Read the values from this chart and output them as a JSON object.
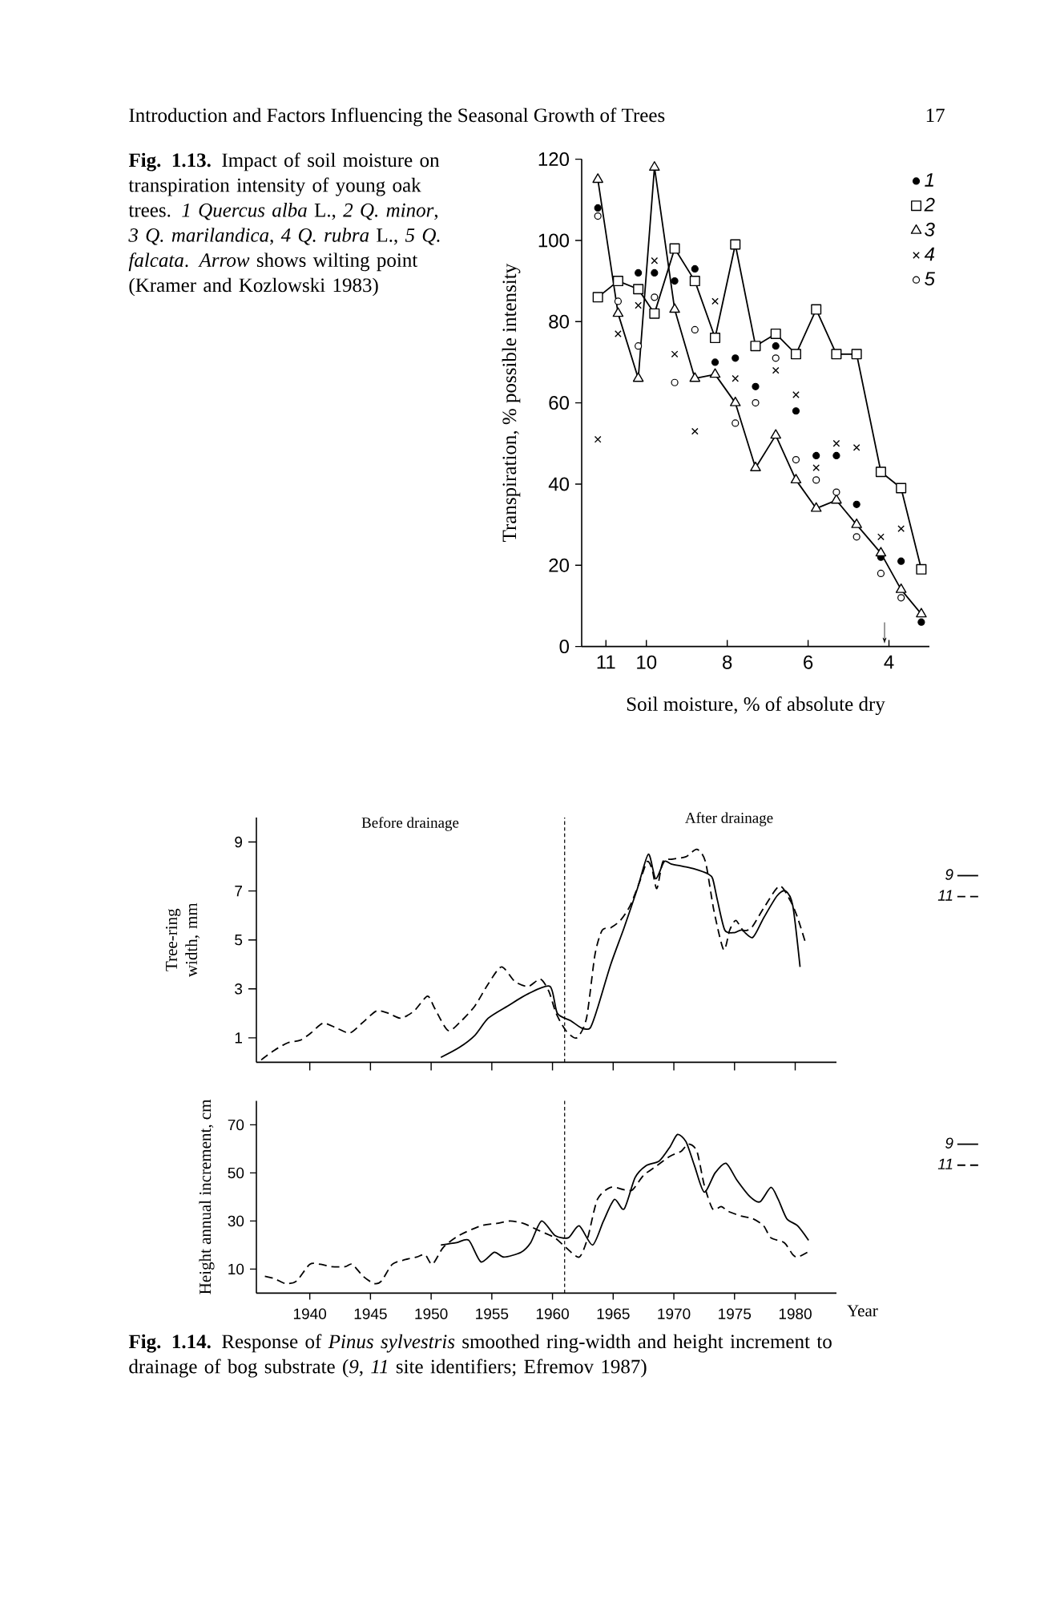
{
  "chart_data": [
    {
      "type": "scatter",
      "xlabel": "Soil moisture, % of absolute dry",
      "ylabel": "Transpiration, % possible intensity",
      "xlim": [
        11.6,
        3.0
      ],
      "xticks": [
        11,
        10,
        8,
        6,
        4
      ],
      "ylim": [
        0,
        120
      ],
      "yticks": [
        0,
        20,
        40,
        60,
        80,
        100,
        120
      ],
      "legend": "top right",
      "annotations": [
        "Introduction and Factors Influencing the Seasonal Growth of Trees",
        "17",
        "**Fig. 1.13.** Impact of soil moisture on transpiration intensity of young oak trees. *1 Quercus alba* L., *2 Q. minor*, *3 Q. marilandica*, *4 Q. rubra* L., *5 Q. falcata*. *Arrow* shows wilting point (Kramer and Kozlowski 1983)",
        "↓"
      ],
      "series": [
        {
          "name": "1",
          "color": "#000000",
          "marker": "circle",
          "x": [
            11.2,
            10.2,
            9.8,
            9.3,
            8.8,
            8.3,
            7.8,
            7.3,
            6.8,
            6.3,
            5.8,
            5.3,
            4.8,
            4.2,
            3.7,
            3.2
          ],
          "values": [
            108,
            92,
            92,
            90,
            93,
            70,
            71,
            64,
            74,
            58,
            47,
            47,
            35,
            22,
            21,
            6
          ]
        },
        {
          "name": "2",
          "type": "line",
          "color": "#000000",
          "marker": "square",
          "line_style": "solid",
          "x": [
            11.2,
            10.7,
            10.2,
            9.8,
            9.3,
            8.8,
            8.3,
            7.8,
            7.3,
            6.8,
            6.3,
            5.8,
            5.3,
            4.8,
            4.2,
            3.7,
            3.2
          ],
          "values": [
            86,
            90,
            88,
            82,
            98,
            90,
            76,
            99,
            74,
            77,
            72,
            83,
            72,
            72,
            43,
            39,
            19
          ]
        },
        {
          "name": "3",
          "type": "line",
          "color": "#000000",
          "marker": "triangle",
          "line_style": "solid",
          "x": [
            11.2,
            10.7,
            10.2,
            9.8,
            9.3,
            8.8,
            8.3,
            7.8,
            7.3,
            6.8,
            6.3,
            5.8,
            5.3,
            4.8,
            4.2,
            3.7,
            3.2
          ],
          "values": [
            115,
            82,
            66,
            118,
            83,
            66,
            67,
            60,
            44,
            52,
            41,
            34,
            36,
            30,
            23,
            14,
            8
          ]
        },
        {
          "name": "4",
          "color": "#000000",
          "marker": "cross",
          "x": [
            11.2,
            10.7,
            10.2,
            9.8,
            9.3,
            8.8,
            8.3,
            7.8,
            6.8,
            6.3,
            5.8,
            5.3,
            4.8,
            4.2,
            3.7
          ],
          "values": [
            51,
            77,
            84,
            95,
            72,
            53,
            85,
            66,
            68,
            62,
            44,
            50,
            49,
            27,
            29
          ]
        },
        {
          "name": "5",
          "color": "#ffffff",
          "marker": "circle",
          "x": [
            11.2,
            10.7,
            10.2,
            9.8,
            9.3,
            8.8,
            7.8,
            7.3,
            6.8,
            6.3,
            5.8,
            5.3,
            4.8,
            4.2,
            3.7
          ],
          "values": [
            106,
            85,
            74,
            86,
            65,
            78,
            55,
            60,
            71,
            46,
            41,
            38,
            27,
            18,
            12
          ]
        }
      ]
    },
    {
      "type": "line",
      "ylabel": "Tree-ring width, mm",
      "xlim": [
        1935.6,
        1983.4
      ],
      "xticks": [
        1940,
        1945,
        1950,
        1955,
        1960,
        1965,
        1970,
        1975,
        1980
      ],
      "ylim": [
        0,
        10
      ],
      "yticks": [
        1,
        3,
        5,
        7,
        9
      ],
      "tick_labels": "y",
      "legend": "right",
      "ref_lines": [
        {
          "axis": "x",
          "value": 1961,
          "line_style": "dashed"
        }
      ],
      "annotations": [
        "Before drainage",
        "After drainage"
      ],
      "series": [
        {
          "name": "9",
          "color": "#000000",
          "line_style": "solid",
          "x": [
            1950.8,
            1952.3,
            1953.6,
            1954.7,
            1956.3,
            1958.0,
            1959.8,
            1960.4,
            1961.5,
            1962.4,
            1963.1,
            1963.7,
            1964.8,
            1965.9,
            1967.0,
            1967.9,
            1968.5,
            1969.2,
            1969.8,
            1970.8,
            1971.7,
            1972.8,
            1973.2,
            1973.6,
            1974.2,
            1975.0,
            1975.6,
            1976.5,
            1977.4,
            1978.5,
            1979.2,
            1979.8,
            1980.4
          ],
          "values": [
            0.2,
            0.6,
            1.1,
            1.8,
            2.3,
            2.8,
            3.1,
            2.0,
            1.7,
            1.4,
            1.4,
            2.2,
            4.0,
            5.5,
            7.1,
            8.5,
            7.5,
            8.2,
            8.1,
            8.0,
            7.9,
            7.7,
            7.5,
            6.6,
            5.4,
            5.3,
            5.4,
            5.1,
            5.9,
            6.8,
            7.0,
            6.4,
            3.9
          ]
        },
        {
          "name": "11",
          "color": "#000000",
          "line_style": "dashed",
          "x": [
            1936.0,
            1937.1,
            1938.2,
            1939.2,
            1940.1,
            1941.1,
            1942.2,
            1943.3,
            1944.3,
            1945.5,
            1946.5,
            1947.5,
            1948.6,
            1949.7,
            1950.3,
            1951.4,
            1952.5,
            1953.6,
            1954.7,
            1955.8,
            1956.9,
            1958.0,
            1959.0,
            1959.7,
            1960.3,
            1961.1,
            1962.0,
            1962.8,
            1963.5,
            1964.1,
            1964.8,
            1965.6,
            1966.4,
            1967.2,
            1967.8,
            1968.2,
            1968.6,
            1969.1,
            1969.9,
            1971.0,
            1971.9,
            1972.6,
            1973.3,
            1974.1,
            1974.6,
            1975.1,
            1975.7,
            1976.4,
            1977.4,
            1978.7,
            1979.6,
            1980.2,
            1980.9
          ],
          "values": [
            0.1,
            0.5,
            0.8,
            0.9,
            1.2,
            1.6,
            1.4,
            1.2,
            1.6,
            2.1,
            2.0,
            1.8,
            2.1,
            2.7,
            2.2,
            1.3,
            1.7,
            2.3,
            3.2,
            3.9,
            3.3,
            3.1,
            3.4,
            2.9,
            2.0,
            1.3,
            1.0,
            1.8,
            4.4,
            5.4,
            5.5,
            5.8,
            6.4,
            7.4,
            8.2,
            7.9,
            7.1,
            8.2,
            8.3,
            8.4,
            8.7,
            8.2,
            6.2,
            4.6,
            5.4,
            5.8,
            5.4,
            5.5,
            6.3,
            7.2,
            6.6,
            5.9,
            4.8
          ]
        }
      ]
    },
    {
      "type": "line",
      "xlabel": "Year",
      "ylabel": "Height annual increment, cm",
      "xlim": [
        1935.6,
        1983.4
      ],
      "xticks": [
        1940,
        1945,
        1950,
        1955,
        1960,
        1965,
        1970,
        1975,
        1980
      ],
      "ylim": [
        0,
        80
      ],
      "yticks": [
        10,
        30,
        50,
        70
      ],
      "legend": "right",
      "ref_lines": [
        {
          "axis": "x",
          "value": 1961,
          "line_style": "dashed"
        }
      ],
      "annotations": [
        "**Fig. 1.14.** Response of *Pinus sylvestris* smoothed ring-width and height increment to drainage of bog substrate (*9*, *11* site identifiers; Efremov 1987)"
      ],
      "series": [
        {
          "name": "9",
          "color": "#000000",
          "line_style": "solid",
          "x": [
            1950.8,
            1952.1,
            1953.1,
            1954.1,
            1955.2,
            1956.0,
            1957.4,
            1958.2,
            1959.1,
            1960.2,
            1961.3,
            1962.2,
            1963.3,
            1964.2,
            1965.1,
            1965.9,
            1966.8,
            1967.7,
            1968.8,
            1969.7,
            1970.3,
            1971.0,
            1971.7,
            1972.5,
            1973.4,
            1974.3,
            1975.2,
            1976.3,
            1977.1,
            1978.0,
            1978.6,
            1979.3,
            1980.2,
            1981.1
          ],
          "values": [
            20,
            21,
            22,
            13,
            17,
            15,
            17,
            21,
            30,
            24,
            23,
            28,
            20,
            30,
            39,
            35,
            48,
            53,
            55,
            61,
            66,
            63,
            53,
            42,
            50,
            54,
            47,
            40,
            38,
            44,
            39,
            31,
            28,
            22
          ]
        },
        {
          "name": "11",
          "color": "#000000",
          "line_style": "dashed",
          "x": [
            1936.3,
            1937.1,
            1938.0,
            1938.9,
            1940.0,
            1940.9,
            1941.8,
            1942.9,
            1943.5,
            1944.4,
            1945.3,
            1945.9,
            1946.8,
            1947.9,
            1948.8,
            1949.5,
            1950.1,
            1951.0,
            1952.3,
            1954.1,
            1955.4,
            1956.5,
            1957.6,
            1958.9,
            1960.2,
            1961.1,
            1962.2,
            1962.9,
            1963.7,
            1964.8,
            1965.9,
            1966.6,
            1967.5,
            1968.6,
            1969.7,
            1970.6,
            1971.2,
            1971.9,
            1972.5,
            1973.2,
            1973.9,
            1974.5,
            1975.6,
            1976.5,
            1977.4,
            1978.0,
            1979.1,
            1979.8,
            1980.2,
            1981.0
          ],
          "values": [
            7,
            6,
            4,
            5,
            12,
            12,
            11,
            11,
            12,
            7,
            4,
            5,
            12,
            14,
            15,
            16,
            12,
            19,
            24,
            28,
            29,
            30,
            29,
            26,
            23,
            19,
            15,
            23,
            39,
            44,
            43,
            43,
            49,
            53,
            57,
            59,
            62,
            59,
            45,
            35,
            36,
            34,
            32,
            31,
            28,
            23,
            21,
            16,
            15,
            17
          ]
        }
      ]
    }
  ]
}
